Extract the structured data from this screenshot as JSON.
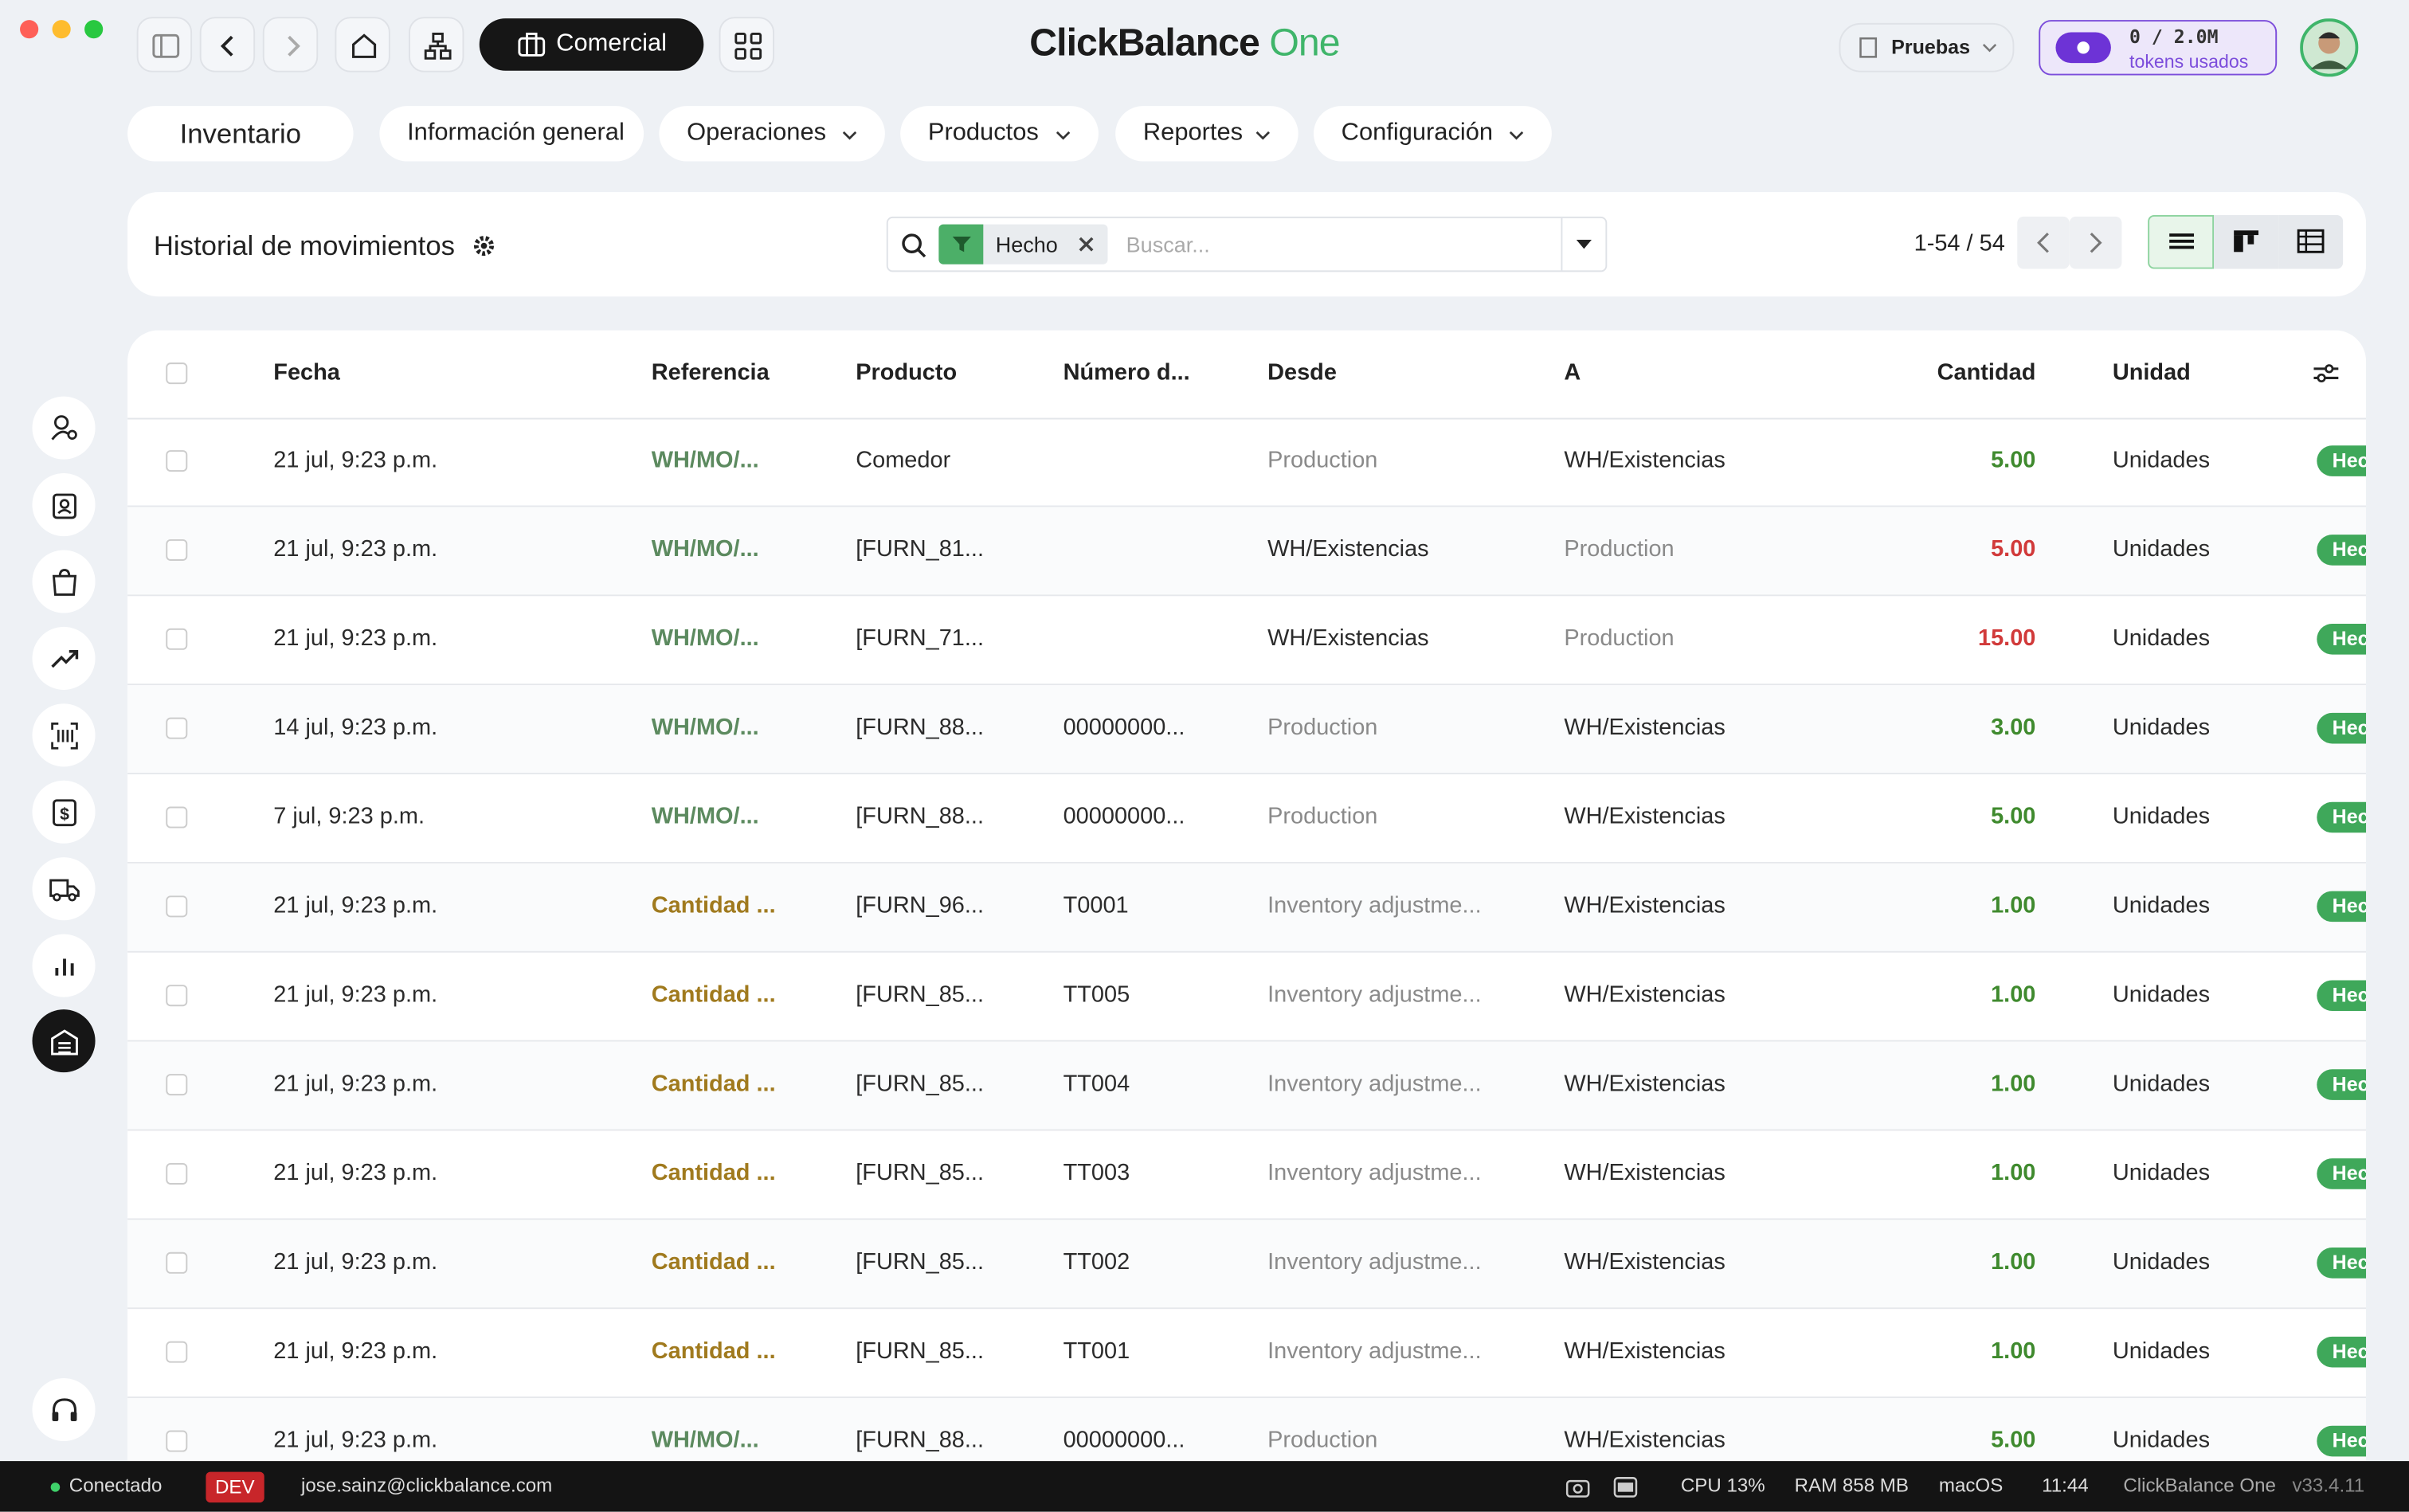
{
  "window": {
    "brand": "ClickBalance",
    "brand_accent": "One",
    "app": "Comercial",
    "company": "Pruebas",
    "tokens": "0 / 2.0M",
    "tokens_label": "tokens usados"
  },
  "nav": {
    "module": "Inventario",
    "menus": [
      "Información general",
      "Operaciones",
      "Productos",
      "Reportes",
      "Configuración"
    ]
  },
  "control": {
    "title": "Historial de movimientos",
    "filter": "Hecho",
    "search_placeholder": "Buscar...",
    "pager": "1-54 / 54"
  },
  "table": {
    "headers": [
      "Fecha",
      "Referencia",
      "Producto",
      "Número d...",
      "Desde",
      "A",
      "Cantidad",
      "Unidad"
    ],
    "rows": [
      {
        "fecha": "21 jul, 9:23 p.m.",
        "referencia": "WH/MO/...",
        "producto": "Comedor",
        "numero": null,
        "desde": "Production",
        "a": "WH/Existencias",
        "cantidad": "5.00",
        "unidad": "Unidades",
        "estado": "Hecho",
        "ref_color": "#5c8a5f",
        "qty_color": "#3f8a2e",
        "desde_color": "#8a8a8a",
        "a_color": "#2b2b2b"
      },
      {
        "fecha": "21 jul, 9:23 p.m.",
        "referencia": "WH/MO/...",
        "producto": "[FURN_81...",
        "numero": null,
        "desde": "WH/Existencias",
        "a": "Production",
        "cantidad": "5.00",
        "unidad": "Unidades",
        "estado": "Hecho",
        "ref_color": "#5c8a5f",
        "qty_color": "#d13a3a",
        "desde_color": "#2b2b2b",
        "a_color": "#8a8a8a"
      },
      {
        "fecha": "21 jul, 9:23 p.m.",
        "referencia": "WH/MO/...",
        "producto": "[FURN_71...",
        "numero": null,
        "desde": "WH/Existencias",
        "a": "Production",
        "cantidad": "15.00",
        "unidad": "Unidades",
        "estado": "Hecho",
        "ref_color": "#5c8a5f",
        "qty_color": "#d13a3a",
        "desde_color": "#2b2b2b",
        "a_color": "#8a8a8a"
      },
      {
        "fecha": "14 jul, 9:23 p.m.",
        "referencia": "WH/MO/...",
        "producto": "[FURN_88...",
        "numero": "00000000...",
        "desde": "Production",
        "a": "WH/Existencias",
        "cantidad": "3.00",
        "unidad": "Unidades",
        "estado": "Hecho",
        "ref_color": "#5c8a5f",
        "qty_color": "#3f8a2e",
        "desde_color": "#8a8a8a",
        "a_color": "#2b2b2b"
      },
      {
        "fecha": "7 jul, 9:23 p.m.",
        "referencia": "WH/MO/...",
        "producto": "[FURN_88...",
        "numero": "00000000...",
        "desde": "Production",
        "a": "WH/Existencias",
        "cantidad": "5.00",
        "unidad": "Unidades",
        "estado": "Hecho",
        "ref_color": "#5c8a5f",
        "qty_color": "#3f8a2e",
        "desde_color": "#8a8a8a",
        "a_color": "#2b2b2b"
      },
      {
        "fecha": "21 jul, 9:23 p.m.",
        "referencia": "Cantidad ...",
        "producto": "[FURN_96...",
        "numero": "T0001",
        "desde": "Inventory adjustme...",
        "a": "WH/Existencias",
        "cantidad": "1.00",
        "unidad": "Unidades",
        "estado": "Hecho",
        "ref_color": "#a07a1e",
        "qty_color": "#3f8a2e",
        "desde_color": "#8a8a8a",
        "a_color": "#2b2b2b"
      },
      {
        "fecha": "21 jul, 9:23 p.m.",
        "referencia": "Cantidad ...",
        "producto": "[FURN_85...",
        "numero": "TT005",
        "desde": "Inventory adjustme...",
        "a": "WH/Existencias",
        "cantidad": "1.00",
        "unidad": "Unidades",
        "estado": "Hecho",
        "ref_color": "#a07a1e",
        "qty_color": "#3f8a2e",
        "desde_color": "#8a8a8a",
        "a_color": "#2b2b2b"
      },
      {
        "fecha": "21 jul, 9:23 p.m.",
        "referencia": "Cantidad ...",
        "producto": "[FURN_85...",
        "numero": "TT004",
        "desde": "Inventory adjustme...",
        "a": "WH/Existencias",
        "cantidad": "1.00",
        "unidad": "Unidades",
        "estado": "Hecho",
        "ref_color": "#a07a1e",
        "qty_color": "#3f8a2e",
        "desde_color": "#8a8a8a",
        "a_color": "#2b2b2b"
      },
      {
        "fecha": "21 jul, 9:23 p.m.",
        "referencia": "Cantidad ...",
        "producto": "[FURN_85...",
        "numero": "TT003",
        "desde": "Inventory adjustme...",
        "a": "WH/Existencias",
        "cantidad": "1.00",
        "unidad": "Unidades",
        "estado": "Hecho",
        "ref_color": "#a07a1e",
        "qty_color": "#3f8a2e",
        "desde_color": "#8a8a8a",
        "a_color": "#2b2b2b"
      },
      {
        "fecha": "21 jul, 9:23 p.m.",
        "referencia": "Cantidad ...",
        "producto": "[FURN_85...",
        "numero": "TT002",
        "desde": "Inventory adjustme...",
        "a": "WH/Existencias",
        "cantidad": "1.00",
        "unidad": "Unidades",
        "estado": "Hecho",
        "ref_color": "#a07a1e",
        "qty_color": "#3f8a2e",
        "desde_color": "#8a8a8a",
        "a_color": "#2b2b2b"
      },
      {
        "fecha": "21 jul, 9:23 p.m.",
        "referencia": "Cantidad ...",
        "producto": "[FURN_85...",
        "numero": "TT001",
        "desde": "Inventory adjustme...",
        "a": "WH/Existencias",
        "cantidad": "1.00",
        "unidad": "Unidades",
        "estado": "Hecho",
        "ref_color": "#a07a1e",
        "qty_color": "#3f8a2e",
        "desde_color": "#8a8a8a",
        "a_color": "#2b2b2b"
      },
      {
        "fecha": "21 jul, 9:23 p.m.",
        "referencia": "WH/MO/...",
        "producto": "[FURN_88...",
        "numero": "00000000...",
        "desde": "Production",
        "a": "WH/Existencias",
        "cantidad": "5.00",
        "unidad": "Unidades",
        "estado": "Hecho",
        "ref_color": "#5c8a5f",
        "qty_color": "#3f8a2e",
        "desde_color": "#8a8a8a",
        "a_color": "#2b2b2b"
      }
    ]
  },
  "status_bar": {
    "connection": "Conectado",
    "env": "DEV",
    "user": "jose.sainz@clickbalance.com",
    "cpu": "CPU 13%",
    "ram": "RAM 858 MB",
    "os": "macOS",
    "time": "11:44",
    "app": "ClickBalance One",
    "version": "v33.4.11"
  }
}
